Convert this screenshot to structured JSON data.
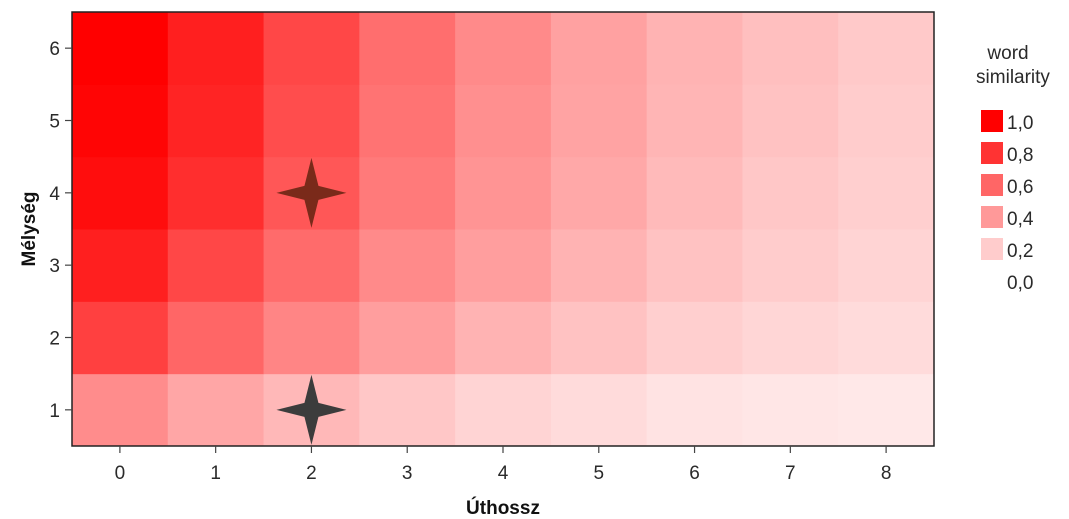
{
  "chart_data": {
    "type": "heatmap",
    "xlabel": "Úthossz",
    "ylabel": "Mélység",
    "x_categories": [
      "0",
      "1",
      "2",
      "3",
      "4",
      "5",
      "6",
      "7",
      "8"
    ],
    "y_categories": [
      "1",
      "2",
      "3",
      "4",
      "5",
      "6"
    ],
    "values": [
      [
        0.45,
        0.35,
        0.28,
        0.22,
        0.17,
        0.14,
        0.11,
        0.1,
        0.09
      ],
      [
        0.75,
        0.6,
        0.48,
        0.38,
        0.3,
        0.24,
        0.19,
        0.16,
        0.14
      ],
      [
        0.88,
        0.72,
        0.58,
        0.46,
        0.38,
        0.3,
        0.24,
        0.2,
        0.17
      ],
      [
        0.95,
        0.82,
        0.66,
        0.52,
        0.42,
        0.34,
        0.27,
        0.22,
        0.19
      ],
      [
        0.98,
        0.86,
        0.7,
        0.55,
        0.44,
        0.36,
        0.29,
        0.24,
        0.2
      ],
      [
        1.0,
        0.88,
        0.72,
        0.57,
        0.46,
        0.37,
        0.3,
        0.25,
        0.21
      ]
    ],
    "markers": [
      {
        "x": "2",
        "y": "4",
        "shape": "four-point-star",
        "color": "#7a2a1a"
      },
      {
        "x": "2",
        "y": "1",
        "shape": "four-point-star",
        "color": "#3c3c3c"
      }
    ],
    "legend": {
      "title_lines": [
        "word",
        "similarity"
      ],
      "position": "right",
      "entries": [
        {
          "label": "1,0",
          "value": 1.0
        },
        {
          "label": "0,8",
          "value": 0.8
        },
        {
          "label": "0,6",
          "value": 0.6
        },
        {
          "label": "0,4",
          "value": 0.4
        },
        {
          "label": "0,2",
          "value": 0.2
        },
        {
          "label": "0,0",
          "value": 0.0
        }
      ]
    },
    "color_scale": {
      "low": "#ffffff",
      "high": "#ff0000"
    },
    "grid": false
  }
}
